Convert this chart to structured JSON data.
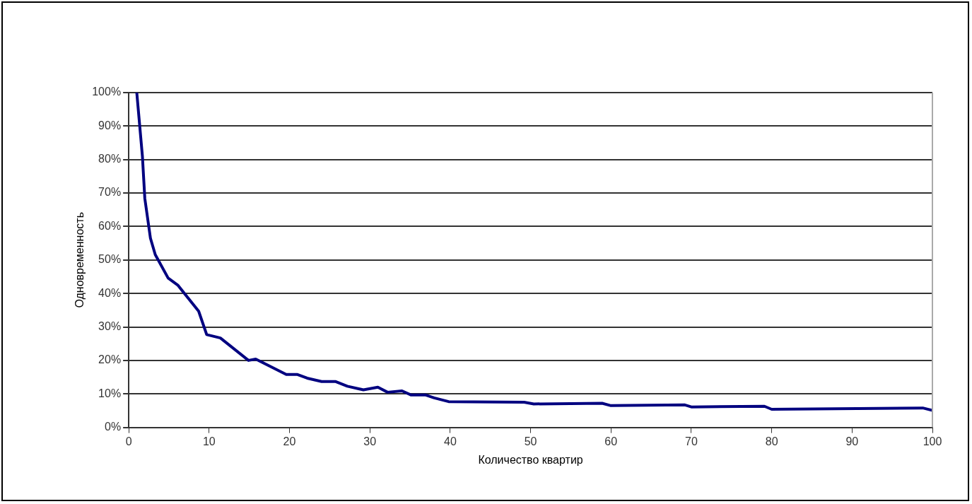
{
  "chart_data": {
    "type": "line",
    "xlabel": "Количество квартир",
    "ylabel": "Одновременность",
    "marker": "none",
    "grid": "y",
    "legend": false,
    "xlim": [
      0,
      100
    ],
    "xticks": [
      0,
      10,
      20,
      30,
      40,
      50,
      60,
      70,
      80,
      90,
      100
    ],
    "ylim": [
      0,
      100
    ],
    "yticks": [
      {
        "value": 0,
        "label": "0%"
      },
      {
        "value": 10,
        "label": "10%"
      },
      {
        "value": 20,
        "label": "20%"
      },
      {
        "value": 30,
        "label": "30%"
      },
      {
        "value": 40,
        "label": "40%"
      },
      {
        "value": 50,
        "label": "50%"
      },
      {
        "value": 60,
        "label": "60%"
      },
      {
        "value": 70,
        "label": "70%"
      },
      {
        "value": 80,
        "label": "80%"
      },
      {
        "value": 90,
        "label": "90%"
      },
      {
        "value": 100,
        "label": "100%"
      }
    ],
    "series": [
      {
        "color": "#000080",
        "x": [
          1,
          1.7,
          2,
          2.7,
          3.3,
          4.9,
          6.1,
          8.7,
          9.7,
          11.4,
          14.9,
          15.8,
          19.6,
          21,
          22.2,
          24,
          25.7,
          27.2,
          29.2,
          31,
          32.2,
          34,
          35.1,
          36.9,
          38,
          39.8,
          49.2,
          50.4,
          58.9,
          60,
          69.2,
          70,
          79.1,
          80,
          98.8,
          100
        ],
        "values": [
          100,
          81,
          68.4,
          56.5,
          51.6,
          44.6,
          42.5,
          34.7,
          27.7,
          26.7,
          20,
          20.4,
          15.8,
          15.8,
          14.7,
          13.7,
          13.7,
          12.3,
          11.2,
          12,
          10.5,
          10.9,
          9.7,
          9.7,
          8.8,
          7.7,
          7.5,
          7,
          7.2,
          6.5,
          6.7,
          6.1,
          6.3,
          5.4,
          5.8,
          5.1
        ]
      }
    ]
  }
}
